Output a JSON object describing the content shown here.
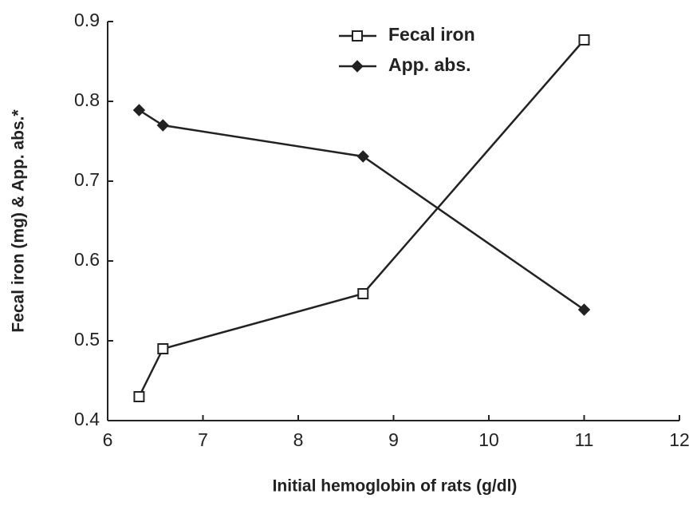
{
  "chart_data": {
    "type": "line",
    "x_label": "Initial hemoglobin of rats (g/dl)",
    "y_label": "Fecal iron (mg) & App. abs.*",
    "xlim": [
      6,
      12
    ],
    "xticks": [
      6,
      7,
      8,
      9,
      10,
      11,
      12
    ],
    "ylim": [
      0.4,
      0.9
    ],
    "yticks": [
      {
        "value": 0.4,
        "label": "0.4"
      },
      {
        "value": 0.5,
        "label": "0.5"
      },
      {
        "value": 0.6,
        "label": "0.6"
      },
      {
        "value": 0.7,
        "label": "0.7"
      },
      {
        "value": 0.8,
        "label": "0.8"
      },
      {
        "value": 0.9,
        "label": "0.9"
      }
    ],
    "legend": "top",
    "series": [
      {
        "name": "Fecal iron",
        "color": "#222222",
        "marker": "open-square",
        "x": [
          6.33,
          6.58,
          8.68,
          11.0
        ],
        "values": [
          0.43,
          0.49,
          0.559,
          0.877
        ]
      },
      {
        "name": "App. abs.",
        "color": "#222222",
        "marker": "filled-diamond",
        "x": [
          6.33,
          6.58,
          8.68,
          11.0
        ],
        "values": [
          0.789,
          0.77,
          0.731,
          0.539
        ]
      }
    ]
  }
}
